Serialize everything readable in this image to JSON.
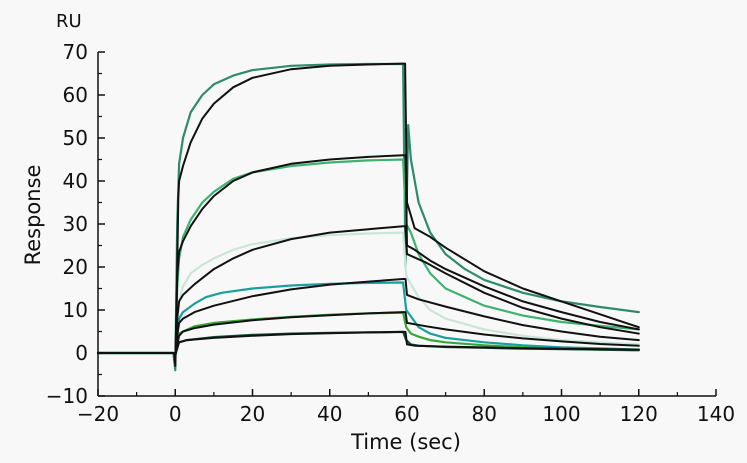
{
  "chart_data": {
    "type": "line",
    "title": "",
    "xlabel": "Time (sec)",
    "ylabel": "Response",
    "y_unit": "RU",
    "xlim": [
      -20,
      140
    ],
    "ylim": [
      -10,
      70
    ],
    "x_ticks": [
      -20,
      0,
      20,
      40,
      60,
      80,
      100,
      120,
      140
    ],
    "y_ticks": [
      -10,
      0,
      10,
      20,
      30,
      40,
      50,
      60,
      70
    ],
    "legend": "none",
    "grid": false,
    "series": [
      {
        "kind": "measured",
        "color": "#2e8b6e",
        "width": 2.2,
        "points": [
          [
            -20,
            0
          ],
          [
            -0.5,
            0
          ],
          [
            0,
            -4
          ],
          [
            0.5,
            30
          ],
          [
            1,
            44
          ],
          [
            2,
            50
          ],
          [
            4,
            56
          ],
          [
            7,
            60
          ],
          [
            10,
            62.5
          ],
          [
            15,
            64.5
          ],
          [
            20,
            65.8
          ],
          [
            30,
            66.8
          ],
          [
            40,
            67.1
          ],
          [
            50,
            67.2
          ],
          [
            59,
            67.2
          ],
          [
            59.6,
            20
          ],
          [
            60.3,
            53
          ],
          [
            61,
            45
          ],
          [
            63,
            35
          ],
          [
            66,
            28
          ],
          [
            70,
            23
          ],
          [
            75,
            19.5
          ],
          [
            80,
            17
          ],
          [
            90,
            14
          ],
          [
            100,
            12
          ],
          [
            110,
            10.7
          ],
          [
            120,
            9.5
          ]
        ]
      },
      {
        "kind": "measured",
        "color": "#3cb371",
        "width": 2.2,
        "points": [
          [
            -20,
            0
          ],
          [
            -0.5,
            0
          ],
          [
            0,
            -2
          ],
          [
            0.5,
            15
          ],
          [
            1,
            22
          ],
          [
            2,
            27
          ],
          [
            4,
            31
          ],
          [
            7,
            35
          ],
          [
            10,
            37.5
          ],
          [
            15,
            40.5
          ],
          [
            20,
            42
          ],
          [
            30,
            43.5
          ],
          [
            40,
            44.3
          ],
          [
            50,
            44.8
          ],
          [
            59,
            45
          ],
          [
            59.8,
            30
          ],
          [
            61,
            28
          ],
          [
            63,
            23
          ],
          [
            66,
            18.5
          ],
          [
            70,
            15
          ],
          [
            80,
            11
          ],
          [
            90,
            8.7
          ],
          [
            100,
            7.2
          ],
          [
            110,
            6.3
          ],
          [
            120,
            5.5
          ]
        ]
      },
      {
        "kind": "measured",
        "color": "#c9e6d8",
        "width": 2.2,
        "points": [
          [
            -20,
            0
          ],
          [
            -0.5,
            0
          ],
          [
            0,
            -1
          ],
          [
            0.5,
            8
          ],
          [
            1,
            12
          ],
          [
            2,
            15.5
          ],
          [
            4,
            18.5
          ],
          [
            7,
            20.5
          ],
          [
            10,
            22
          ],
          [
            15,
            24
          ],
          [
            20,
            25.3
          ],
          [
            30,
            26.7
          ],
          [
            40,
            27.4
          ],
          [
            50,
            27.8
          ],
          [
            59,
            28
          ],
          [
            59.8,
            18
          ],
          [
            61,
            16
          ],
          [
            63,
            13
          ],
          [
            66,
            10
          ],
          [
            70,
            8
          ],
          [
            80,
            5.5
          ],
          [
            90,
            4
          ],
          [
            100,
            3
          ],
          [
            110,
            2.5
          ],
          [
            120,
            2
          ]
        ]
      },
      {
        "kind": "measured",
        "color": "#1a9e9e",
        "width": 2.2,
        "points": [
          [
            -20,
            0
          ],
          [
            -0.5,
            0
          ],
          [
            0,
            -1
          ],
          [
            0.5,
            6
          ],
          [
            1,
            8
          ],
          [
            2,
            9.5
          ],
          [
            5,
            11.5
          ],
          [
            8,
            13
          ],
          [
            12,
            14
          ],
          [
            20,
            15
          ],
          [
            30,
            15.7
          ],
          [
            40,
            16.1
          ],
          [
            50,
            16.3
          ],
          [
            59,
            16.4
          ],
          [
            59.8,
            10
          ],
          [
            61,
            8.5
          ],
          [
            63,
            6
          ],
          [
            66,
            4.5
          ],
          [
            70,
            3.5
          ],
          [
            80,
            2.5
          ],
          [
            90,
            1.8
          ],
          [
            100,
            1.3
          ],
          [
            110,
            1.1
          ],
          [
            120,
            0.8
          ]
        ]
      },
      {
        "kind": "measured",
        "color": "#3aa63a",
        "width": 2.2,
        "points": [
          [
            -20,
            0
          ],
          [
            -0.5,
            0
          ],
          [
            0,
            -0.5
          ],
          [
            0.5,
            3
          ],
          [
            1,
            4.5
          ],
          [
            2,
            5
          ],
          [
            5,
            6.2
          ],
          [
            10,
            7
          ],
          [
            20,
            7.8
          ],
          [
            30,
            8.4
          ],
          [
            40,
            8.9
          ],
          [
            50,
            9.2
          ],
          [
            59,
            9.4
          ],
          [
            59.8,
            6
          ],
          [
            61,
            4.5
          ],
          [
            63,
            3.8
          ],
          [
            66,
            3
          ],
          [
            70,
            2.5
          ],
          [
            80,
            1.8
          ],
          [
            90,
            1.3
          ],
          [
            100,
            1
          ],
          [
            110,
            0.8
          ],
          [
            120,
            0.6
          ]
        ]
      },
      {
        "kind": "measured",
        "color": "#174f3c",
        "width": 2.2,
        "points": [
          [
            -20,
            0
          ],
          [
            -0.5,
            0
          ],
          [
            0,
            -0.5
          ],
          [
            0.5,
            2
          ],
          [
            1,
            2.5
          ],
          [
            3,
            3
          ],
          [
            10,
            3.7
          ],
          [
            20,
            4.2
          ],
          [
            30,
            4.5
          ],
          [
            40,
            4.7
          ],
          [
            50,
            4.8
          ],
          [
            59,
            4.9
          ],
          [
            59.8,
            3
          ],
          [
            61,
            2
          ],
          [
            63,
            1.7
          ],
          [
            70,
            1.4
          ],
          [
            80,
            1.2
          ],
          [
            90,
            1
          ],
          [
            100,
            0.9
          ],
          [
            110,
            0.8
          ],
          [
            120,
            0.7
          ]
        ]
      },
      {
        "kind": "fit",
        "color": "#111111",
        "width": 2,
        "points": [
          [
            -20,
            0
          ],
          [
            -0.3,
            0
          ],
          [
            0,
            -3
          ],
          [
            0.3,
            8
          ],
          [
            0.8,
            36
          ],
          [
            1,
            40
          ],
          [
            2,
            43.5
          ],
          [
            4,
            49
          ],
          [
            7,
            54.5
          ],
          [
            10,
            58
          ],
          [
            15,
            61.8
          ],
          [
            20,
            64
          ],
          [
            30,
            66
          ],
          [
            40,
            66.8
          ],
          [
            50,
            67.1
          ],
          [
            59,
            67.3
          ],
          [
            59.5,
            67.3
          ],
          [
            60,
            35
          ],
          [
            62,
            29
          ],
          [
            66,
            27
          ],
          [
            70,
            24.5
          ],
          [
            80,
            19
          ],
          [
            90,
            15
          ],
          [
            100,
            12
          ],
          [
            110,
            9
          ],
          [
            120,
            6
          ]
        ]
      },
      {
        "kind": "fit",
        "color": "#111111",
        "width": 2,
        "points": [
          [
            -20,
            0
          ],
          [
            -0.3,
            0
          ],
          [
            0,
            -2
          ],
          [
            0.5,
            18
          ],
          [
            1,
            23.5
          ],
          [
            2,
            26
          ],
          [
            4,
            29.5
          ],
          [
            7,
            33.5
          ],
          [
            10,
            36.5
          ],
          [
            15,
            40
          ],
          [
            20,
            42
          ],
          [
            30,
            44
          ],
          [
            40,
            45
          ],
          [
            50,
            45.6
          ],
          [
            59,
            46
          ],
          [
            59.6,
            46
          ],
          [
            60,
            25
          ],
          [
            62,
            24
          ],
          [
            66,
            21.5
          ],
          [
            70,
            19.5
          ],
          [
            80,
            15.5
          ],
          [
            90,
            12
          ],
          [
            100,
            9.5
          ],
          [
            110,
            7.2
          ],
          [
            120,
            5.5
          ]
        ]
      },
      {
        "kind": "fit",
        "color": "#111111",
        "width": 2,
        "points": [
          [
            -20,
            0
          ],
          [
            -0.3,
            0
          ],
          [
            0,
            -1
          ],
          [
            0.5,
            8
          ],
          [
            1,
            12
          ],
          [
            2,
            13.5
          ],
          [
            5,
            16
          ],
          [
            10,
            19.5
          ],
          [
            15,
            22
          ],
          [
            20,
            24
          ],
          [
            30,
            26.5
          ],
          [
            40,
            28
          ],
          [
            50,
            28.8
          ],
          [
            59,
            29.5
          ],
          [
            59.6,
            29.5
          ],
          [
            60,
            23
          ],
          [
            65,
            21
          ],
          [
            70,
            18.5
          ],
          [
            80,
            14
          ],
          [
            90,
            10.5
          ],
          [
            100,
            8
          ],
          [
            110,
            6
          ],
          [
            120,
            4.5
          ]
        ]
      },
      {
        "kind": "fit",
        "color": "#111111",
        "width": 2,
        "points": [
          [
            -20,
            0
          ],
          [
            -0.3,
            0
          ],
          [
            0,
            -1
          ],
          [
            0.5,
            4
          ],
          [
            1,
            7
          ],
          [
            2,
            8
          ],
          [
            5,
            9.5
          ],
          [
            10,
            11
          ],
          [
            20,
            13.2
          ],
          [
            30,
            14.8
          ],
          [
            40,
            15.9
          ],
          [
            50,
            16.6
          ],
          [
            59,
            17.2
          ],
          [
            59.6,
            17.2
          ],
          [
            60,
            13.5
          ],
          [
            63,
            12.5
          ],
          [
            70,
            10.8
          ],
          [
            80,
            8.5
          ],
          [
            90,
            6.5
          ],
          [
            100,
            5
          ],
          [
            110,
            3.8
          ],
          [
            120,
            3
          ]
        ]
      },
      {
        "kind": "fit",
        "color": "#111111",
        "width": 2,
        "points": [
          [
            -20,
            0
          ],
          [
            -0.3,
            0
          ],
          [
            0,
            -0.5
          ],
          [
            1,
            4
          ],
          [
            2,
            5
          ],
          [
            5,
            5.8
          ],
          [
            10,
            6.6
          ],
          [
            20,
            7.6
          ],
          [
            30,
            8.3
          ],
          [
            40,
            8.8
          ],
          [
            50,
            9.2
          ],
          [
            59,
            9.5
          ],
          [
            59.6,
            9.5
          ],
          [
            60,
            7
          ],
          [
            65,
            6.2
          ],
          [
            70,
            5.5
          ],
          [
            80,
            4.3
          ],
          [
            90,
            3.4
          ],
          [
            100,
            2.7
          ],
          [
            110,
            2.1
          ],
          [
            120,
            1.7
          ]
        ]
      },
      {
        "kind": "fit",
        "color": "#111111",
        "width": 2,
        "points": [
          [
            -20,
            0
          ],
          [
            -0.3,
            0
          ],
          [
            0,
            -0.5
          ],
          [
            1,
            2.5
          ],
          [
            3,
            3
          ],
          [
            10,
            3.5
          ],
          [
            20,
            4
          ],
          [
            30,
            4.4
          ],
          [
            40,
            4.6
          ],
          [
            50,
            4.8
          ],
          [
            59,
            4.9
          ],
          [
            59.6,
            4.9
          ],
          [
            60,
            2
          ],
          [
            62,
            1.7
          ],
          [
            70,
            1.5
          ],
          [
            80,
            1.3
          ],
          [
            90,
            1.1
          ],
          [
            100,
            1
          ],
          [
            110,
            0.9
          ],
          [
            120,
            0.8
          ]
        ]
      }
    ]
  }
}
